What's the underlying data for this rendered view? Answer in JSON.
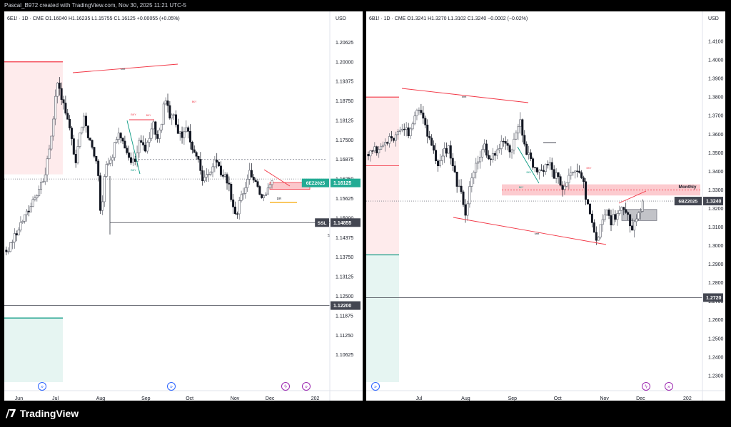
{
  "top_caption": "Pascal_B972 created with TradingView.com, Nov 30, 2025 11:21 UTC-5",
  "brand": {
    "icon": "tradingview-logo-icon",
    "name": "TradingView"
  },
  "chart_data": [
    {
      "type": "candlestick",
      "symbol_header": "6E1! · 1D · CME",
      "ohlc": {
        "O": "O1.16040",
        "H": "H1.16235",
        "L": "L1.15755",
        "C": "C1.16125",
        "change": "+0.00055 (+0.05%)"
      },
      "currency": "USD",
      "ylim": [
        1.0975,
        1.2125
      ],
      "y_ticks": [
        "1.20625",
        "1.20000",
        "1.19375",
        "1.18750",
        "1.18125",
        "1.17500",
        "1.16875",
        "1.16250",
        "1.15625",
        "1.15000",
        "1.14375",
        "1.13750",
        "1.13125",
        "1.12500",
        "1.11875",
        "1.11250",
        "1.10625"
      ],
      "x_ticks": [
        {
          "label": "Jun",
          "day": 0
        },
        {
          "label": "Jul",
          "day": 25
        },
        {
          "label": "Aug",
          "day": 56
        },
        {
          "label": "Sep",
          "day": 87
        },
        {
          "label": "Oct",
          "day": 117
        },
        {
          "label": "Nov",
          "day": 148
        },
        {
          "label": "Dec",
          "day": 172
        },
        {
          "label": "202",
          "day": 203
        }
      ],
      "x_range_days": [
        -10,
        213
      ],
      "series_path": [
        [
          -10,
          1.138
        ],
        [
          -6,
          1.142
        ],
        [
          -2,
          1.145
        ],
        [
          2,
          1.149
        ],
        [
          6,
          1.152
        ],
        [
          10,
          1.156
        ],
        [
          14,
          1.16
        ],
        [
          18,
          1.164
        ],
        [
          22,
          1.176
        ],
        [
          24,
          1.185
        ],
        [
          26,
          1.192
        ],
        [
          28,
          1.19
        ],
        [
          30,
          1.186
        ],
        [
          33,
          1.183
        ],
        [
          36,
          1.175
        ],
        [
          39,
          1.168
        ],
        [
          42,
          1.177
        ],
        [
          45,
          1.183
        ],
        [
          48,
          1.176
        ],
        [
          51,
          1.17
        ],
        [
          54,
          1.166
        ],
        [
          56,
          1.15
        ],
        [
          59,
          1.167
        ],
        [
          62,
          1.168
        ],
        [
          65,
          1.172
        ],
        [
          68,
          1.179
        ],
        [
          71,
          1.174
        ],
        [
          74,
          1.17
        ],
        [
          77,
          1.168
        ],
        [
          80,
          1.169
        ],
        [
          83,
          1.176
        ],
        [
          86,
          1.171
        ],
        [
          89,
          1.175
        ],
        [
          92,
          1.18
        ],
        [
          95,
          1.175
        ],
        [
          98,
          1.179
        ],
        [
          100,
          1.19
        ],
        [
          102,
          1.186
        ],
        [
          104,
          1.181
        ],
        [
          106,
          1.184
        ],
        [
          108,
          1.178
        ],
        [
          111,
          1.176
        ],
        [
          114,
          1.18
        ],
        [
          117,
          1.175
        ],
        [
          120,
          1.171
        ],
        [
          123,
          1.168
        ],
        [
          126,
          1.163
        ],
        [
          129,
          1.164
        ],
        [
          132,
          1.166
        ],
        [
          135,
          1.168
        ],
        [
          138,
          1.166
        ],
        [
          141,
          1.163
        ],
        [
          144,
          1.159
        ],
        [
          147,
          1.154
        ],
        [
          149,
          1.15
        ],
        [
          152,
          1.156
        ],
        [
          155,
          1.16
        ],
        [
          158,
          1.164
        ],
        [
          161,
          1.163
        ],
        [
          164,
          1.159
        ],
        [
          166,
          1.156
        ],
        [
          168,
          1.157
        ],
        [
          170,
          1.159
        ],
        [
          172,
          1.161
        ],
        [
          174,
          1.1613
        ]
      ],
      "price_tags": [
        {
          "label": "6EZ2025",
          "value": "1.16125",
          "color": "#22ab94"
        },
        {
          "label": "SSL",
          "value": "1.14855",
          "color": "#434651"
        },
        {
          "label": "",
          "value": "1.12200",
          "color": "#434651"
        }
      ],
      "annotations": [
        "smt",
        "BKY",
        "BKY",
        "BKY",
        "BKY",
        "DR",
        "SSL"
      ],
      "zones": [
        {
          "kind": "premium",
          "color": "#f23645",
          "y_range": [
            1.164,
            1.2
          ]
        },
        {
          "kind": "discount",
          "color": "#089981",
          "y_range": [
            1.0975,
            1.118
          ]
        },
        {
          "kind": "bearish_fvg",
          "color": "#f23645",
          "y_range": [
            1.1592,
            1.1614
          ]
        }
      ],
      "levels": [
        "1.16875",
        "1.16250",
        "1.14855",
        "1.12200"
      ]
    },
    {
      "type": "candlestick",
      "symbol_header": "6B1! · 1D · CME",
      "ohlc": {
        "O": "O1.3241",
        "H": "H1.3270",
        "L": "L1.3102",
        "C": "C1.3240",
        "change": "−0.0002 (−0.02%)"
      },
      "currency": "USD",
      "ylim": [
        1.2265,
        1.42
      ],
      "y_ticks": [
        "1.4100",
        "1.4000",
        "1.3900",
        "1.3800",
        "1.3700",
        "1.3600",
        "1.3500",
        "1.3400",
        "1.3300",
        "1.3200",
        "1.3100",
        "1.3000",
        "1.2900",
        "1.2800",
        "1.2700",
        "1.2600",
        "1.2500",
        "1.2400",
        "1.2300"
      ],
      "x_ticks": [
        {
          "label": "Jul",
          "day": 25
        },
        {
          "label": "Aug",
          "day": 56
        },
        {
          "label": "Sep",
          "day": 87
        },
        {
          "label": "Oct",
          "day": 117
        },
        {
          "label": "Nov",
          "day": 148
        },
        {
          "label": "Dec",
          "day": 172
        },
        {
          "label": "202",
          "day": 203
        }
      ],
      "x_range_days": [
        -10,
        213
      ],
      "series_path": [
        [
          -10,
          1.346
        ],
        [
          -6,
          1.352
        ],
        [
          -2,
          1.35
        ],
        [
          2,
          1.357
        ],
        [
          6,
          1.356
        ],
        [
          10,
          1.36
        ],
        [
          14,
          1.363
        ],
        [
          18,
          1.362
        ],
        [
          22,
          1.368
        ],
        [
          24,
          1.374
        ],
        [
          26,
          1.372
        ],
        [
          29,
          1.366
        ],
        [
          32,
          1.357
        ],
        [
          35,
          1.35
        ],
        [
          38,
          1.343
        ],
        [
          41,
          1.349
        ],
        [
          44,
          1.353
        ],
        [
          47,
          1.343
        ],
        [
          50,
          1.335
        ],
        [
          53,
          1.329
        ],
        [
          56,
          1.318
        ],
        [
          59,
          1.333
        ],
        [
          62,
          1.342
        ],
        [
          65,
          1.347
        ],
        [
          68,
          1.354
        ],
        [
          71,
          1.346
        ],
        [
          74,
          1.348
        ],
        [
          77,
          1.353
        ],
        [
          80,
          1.356
        ],
        [
          83,
          1.355
        ],
        [
          86,
          1.352
        ],
        [
          88,
          1.356
        ],
        [
          90,
          1.36
        ],
        [
          92,
          1.366
        ],
        [
          94,
          1.359
        ],
        [
          96,
          1.351
        ],
        [
          99,
          1.347
        ],
        [
          102,
          1.342
        ],
        [
          105,
          1.338
        ],
        [
          108,
          1.341
        ],
        [
          111,
          1.345
        ],
        [
          114,
          1.34
        ],
        [
          117,
          1.336
        ],
        [
          120,
          1.331
        ],
        [
          123,
          1.333
        ],
        [
          126,
          1.339
        ],
        [
          129,
          1.341
        ],
        [
          132,
          1.336
        ],
        [
          135,
          1.33
        ],
        [
          137,
          1.32
        ],
        [
          139,
          1.313
        ],
        [
          141,
          1.306
        ],
        [
          143,
          1.302
        ],
        [
          146,
          1.313
        ],
        [
          149,
          1.318
        ],
        [
          152,
          1.313
        ],
        [
          155,
          1.315
        ],
        [
          158,
          1.32
        ],
        [
          161,
          1.318
        ],
        [
          164,
          1.314
        ],
        [
          166,
          1.309
        ],
        [
          168,
          1.311
        ],
        [
          170,
          1.316
        ],
        [
          172,
          1.32
        ],
        [
          174,
          1.324
        ]
      ],
      "price_tags": [
        {
          "label": "6BZ2025",
          "value": "1.3240",
          "color": "#434651"
        },
        {
          "label": "",
          "value": "1.2720",
          "color": "#434651"
        }
      ],
      "annotations": [
        "smt",
        "smt",
        "BKY",
        "BKY",
        "BKY",
        "Monthly"
      ],
      "zones": [
        {
          "kind": "premium",
          "color": "#f23645",
          "y_range": [
            1.295,
            1.38
          ]
        },
        {
          "kind": "discount",
          "color": "#089981",
          "y_range": [
            1.2265,
            1.295
          ]
        },
        {
          "kind": "monthly_fvg",
          "color": "#f23645",
          "y_range": [
            1.327,
            1.333
          ]
        },
        {
          "kind": "consolidation",
          "color": "#787b86",
          "y_range": [
            1.3135,
            1.3195
          ]
        }
      ],
      "levels": [
        "1.3300",
        "1.3240",
        "1.2720"
      ]
    }
  ]
}
